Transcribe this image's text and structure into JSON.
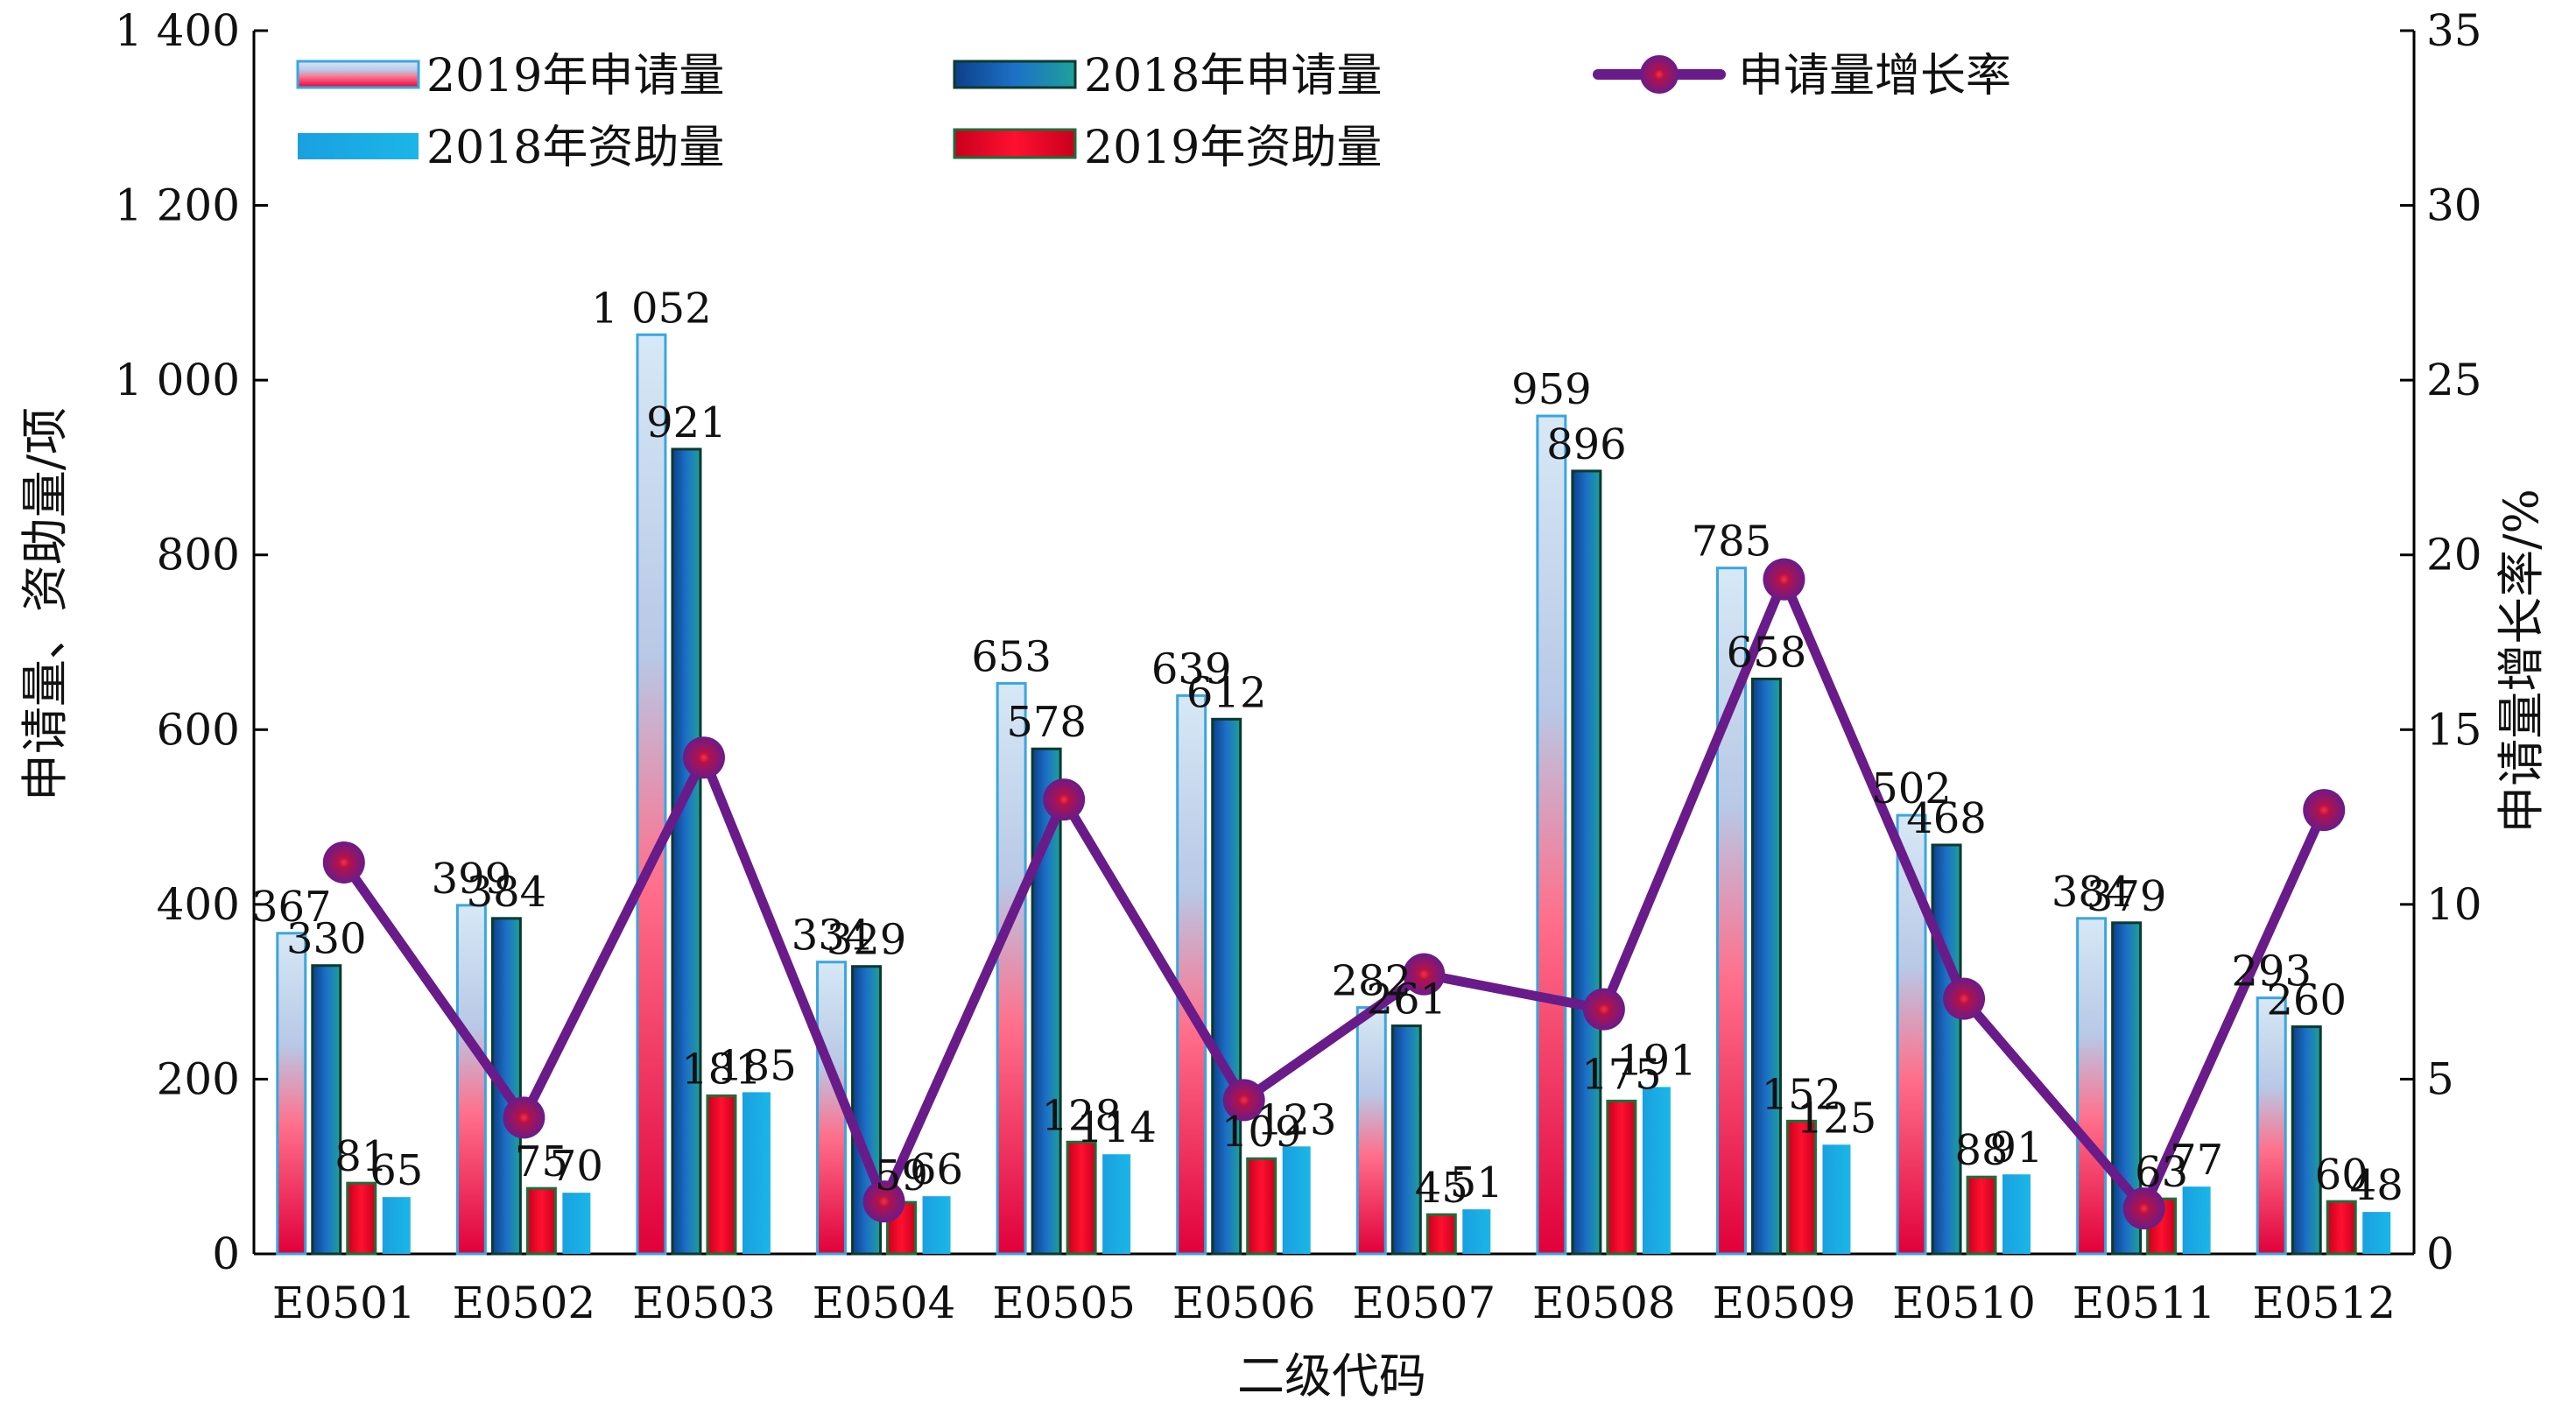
{
  "colors": {
    "s2019_app": "#3aa6e0",
    "s2018_app": "#1f8f86",
    "s2018_fund": "#12a7dc",
    "s2019_fund": "#e0102a",
    "growth": "#6a1b8a",
    "growth_dot": "#e0102a"
  },
  "legend": {
    "items": [
      {
        "label": "2019年申请量",
        "icon": "bar-gradient-red-blue"
      },
      {
        "label": "2018年申请量",
        "icon": "bar-gradient-blue-teal"
      },
      {
        "label": "申请量增长率",
        "icon": "line-with-circle-marker"
      },
      {
        "label": "2018年资助量",
        "icon": "bar-cyan"
      },
      {
        "label": "2019年资助量",
        "icon": "bar-red-green-edge"
      }
    ]
  },
  "axes": {
    "xlabel": "二级代码",
    "ylabel_left": "申请量、资助量/项",
    "ylabel_right": "申请量增长率/%",
    "left_ticks": [
      "0",
      "200",
      "400",
      "600",
      "800",
      "1 000",
      "1 200",
      "1 400"
    ],
    "right_ticks": [
      "0",
      "5",
      "10",
      "15",
      "20",
      "25",
      "30",
      "35"
    ]
  },
  "chart_data": {
    "type": "bar",
    "categories": [
      "E0501",
      "E0502",
      "E0503",
      "E0504",
      "E0505",
      "E0506",
      "E0507",
      "E0508",
      "E0509",
      "E0510",
      "E0511",
      "E0512"
    ],
    "ylim_left": [
      0,
      1400
    ],
    "ylim_right": [
      0,
      35
    ],
    "grid": false,
    "legend_placement": "top",
    "series": [
      {
        "name": "2019年申请量",
        "axis": "left",
        "values": [
          367,
          399,
          1052,
          334,
          653,
          639,
          282,
          959,
          785,
          502,
          384,
          293
        ],
        "labels": [
          "367",
          "399",
          "1 052",
          "334",
          "653",
          "639",
          "282",
          "959",
          "785",
          "502",
          "384",
          "293"
        ]
      },
      {
        "name": "2018年申请量",
        "axis": "left",
        "values": [
          330,
          384,
          921,
          329,
          578,
          612,
          261,
          896,
          658,
          468,
          379,
          260
        ],
        "labels": [
          "330",
          "384",
          "921",
          "329",
          "578",
          "612",
          "261",
          "896",
          "658",
          "468",
          "379",
          "260"
        ]
      },
      {
        "name": "2019年资助量",
        "axis": "left",
        "values": [
          81,
          75,
          181,
          59,
          128,
          109,
          45,
          175,
          152,
          88,
          63,
          60
        ],
        "labels": [
          "81",
          "75",
          "181",
          "59",
          "128",
          "109",
          "45",
          "175",
          "152",
          "88",
          "63",
          "60"
        ]
      },
      {
        "name": "2018年资助量",
        "axis": "left",
        "values": [
          65,
          70,
          185,
          66,
          114,
          123,
          51,
          191,
          125,
          91,
          77,
          48
        ],
        "labels": [
          "65",
          "70",
          "185",
          "66",
          "114",
          "123",
          "51",
          "191",
          "125",
          "91",
          "77",
          "48"
        ]
      },
      {
        "name": "申请量增长率",
        "axis": "right",
        "type": "line",
        "values": [
          11.2,
          3.9,
          14.2,
          1.5,
          13.0,
          4.4,
          8.0,
          7.0,
          19.3,
          7.3,
          1.3,
          12.7
        ]
      }
    ]
  }
}
